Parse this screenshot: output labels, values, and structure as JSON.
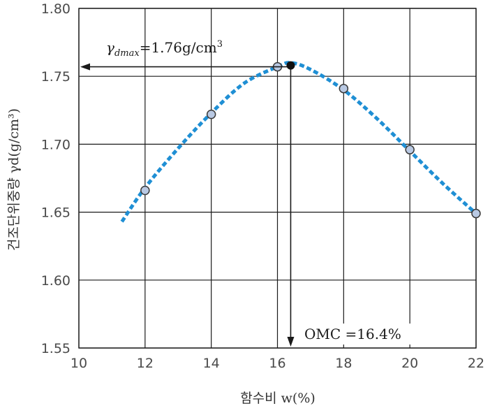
{
  "chart_data": {
    "type": "scatter",
    "xlabel": "함수비 w(%)",
    "ylabel": "건조단위중량 γd(g/cm³)",
    "xlim": [
      10,
      22
    ],
    "ylim": [
      1.55,
      1.8
    ],
    "x_ticks": [
      "10",
      "12",
      "14",
      "16",
      "18",
      "20",
      "22"
    ],
    "y_ticks": [
      "1.55",
      "1.60",
      "1.65",
      "1.70",
      "1.75",
      "1.80"
    ],
    "grid": true,
    "series": [
      {
        "points": [
          {
            "x": 12,
            "y": 1.666
          },
          {
            "x": 14,
            "y": 1.722
          },
          {
            "x": 16,
            "y": 1.757
          },
          {
            "x": 18,
            "y": 1.741
          },
          {
            "x": 20,
            "y": 1.696
          },
          {
            "x": 22,
            "y": 1.649
          }
        ]
      }
    ],
    "fitted_curve": {
      "style": "dashed",
      "points": [
        {
          "x": 11.3,
          "y": 1.643
        },
        {
          "x": 12,
          "y": 1.668
        },
        {
          "x": 13,
          "y": 1.697
        },
        {
          "x": 14,
          "y": 1.723
        },
        {
          "x": 15,
          "y": 1.745
        },
        {
          "x": 16,
          "y": 1.757
        },
        {
          "x": 16.4,
          "y": 1.76
        },
        {
          "x": 17,
          "y": 1.755
        },
        {
          "x": 18,
          "y": 1.74
        },
        {
          "x": 19,
          "y": 1.719
        },
        {
          "x": 20,
          "y": 1.695
        },
        {
          "x": 21,
          "y": 1.671
        },
        {
          "x": 22,
          "y": 1.649
        }
      ]
    },
    "peak": {
      "x": 16.4,
      "y": 1.758
    },
    "annotations": {
      "gamma_symbol": "γ",
      "gamma_sub": "dmax",
      "gamma_value": "=1.76g/cm",
      "gamma_sup": "3",
      "omc": "OMC =16.4%"
    },
    "colors": {
      "curve": "#1f8fd4",
      "marker_fill": "#b9c9e3",
      "marker_stroke": "#3a3a3a",
      "peak_fill": "#111111",
      "grid": "#1a1a1a"
    }
  }
}
